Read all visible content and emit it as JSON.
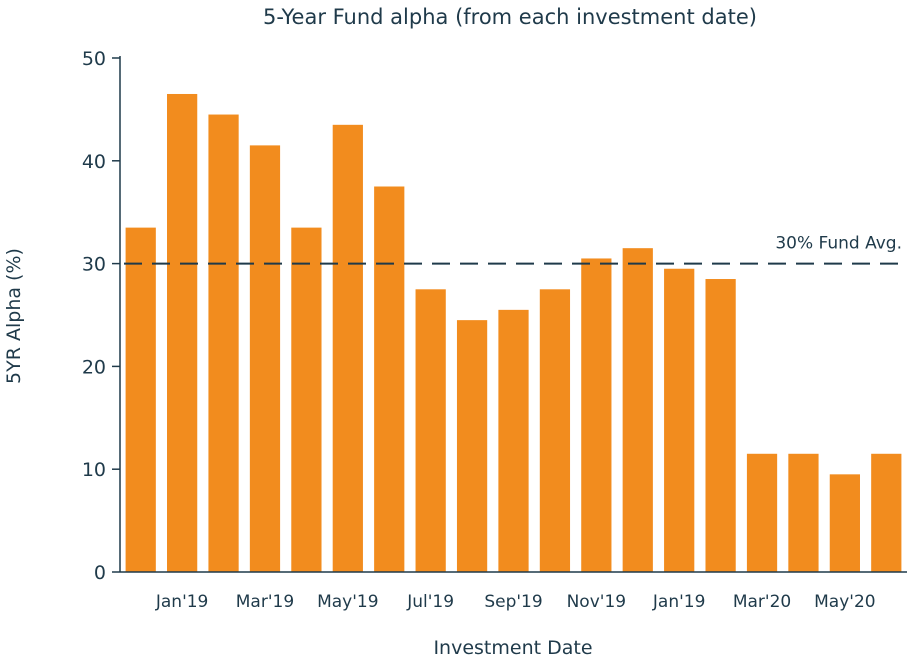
{
  "chart_data": {
    "type": "bar",
    "title": "5-Year Fund alpha (from each investment date)",
    "xlabel": "Investment Date",
    "ylabel": "5YR Alpha (%)",
    "ylim": [
      0,
      50
    ],
    "yticks": [
      0,
      10,
      20,
      30,
      40,
      50
    ],
    "categories": [
      "",
      "Jan'19",
      "",
      "Mar'19",
      "",
      "May'19",
      "",
      "Jul'19",
      "",
      "Sep'19",
      "",
      "Nov'19",
      "",
      "Jan'19",
      "",
      "Mar'20",
      "",
      "May'20",
      ""
    ],
    "values": [
      33.5,
      46.5,
      44.5,
      41.5,
      33.5,
      43.5,
      37.5,
      27.5,
      24.5,
      25.5,
      27.5,
      30.5,
      31.5,
      29.5,
      28.5,
      11.5,
      11.5,
      9.5,
      11.5
    ],
    "bar_color": "#f28c1e",
    "reference_line": {
      "value": 30,
      "label": "30% Fund Avg.",
      "style": "dashed"
    },
    "grid": false,
    "legend": "none"
  }
}
